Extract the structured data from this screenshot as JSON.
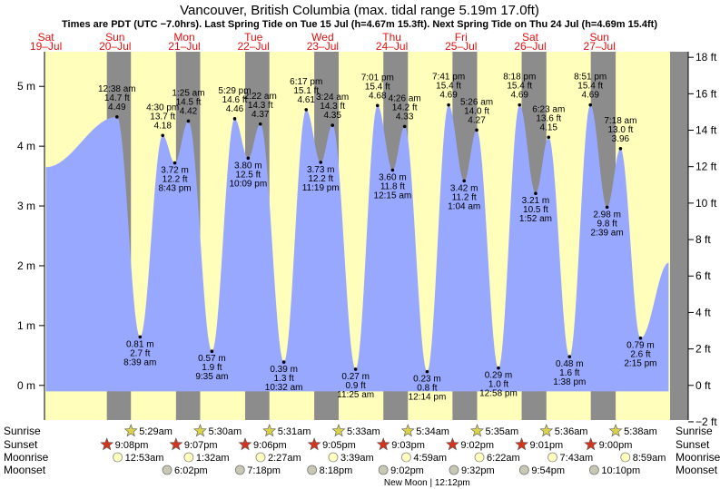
{
  "chart_data": {
    "type": "area",
    "title": "Vancouver, British Columbia (max. tidal range 5.19m 17.0ft)",
    "subtitle": "Times are PDT (UTC −7.0hrs). Last Spring Tide on Tue 15 Jul (h=4.67m 15.3ft). Next Spring Tide on Thu 24 Jul (h=4.69m 15.4ft)",
    "colors": {
      "water": "#99a8ff",
      "day": "#ffffbb",
      "night": "#8c8c8c",
      "axis_band": "#8c8c8c",
      "dayname": "#e01010"
    },
    "x_range_hours": [
      -0.5,
      216.5
    ],
    "ylim_m": [
      -0.58,
      5.58
    ],
    "left_axis": {
      "ticks": [
        0,
        1,
        2,
        3,
        4,
        5
      ],
      "labels": [
        "0 m",
        "1 m",
        "2 m",
        "3 m",
        "4 m",
        "5 m"
      ]
    },
    "right_axis": {
      "ticks_ft": [
        -2,
        0,
        2,
        4,
        6,
        8,
        10,
        12,
        14,
        16,
        18
      ],
      "labels": [
        "−2 ft",
        "0 ft",
        "2 ft",
        "4 ft",
        "6 ft",
        "8 ft",
        "10 ft",
        "12 ft",
        "14 ft",
        "16 ft",
        "18 ft"
      ]
    },
    "days": [
      {
        "dow": "Sat",
        "date": "19–Jul"
      },
      {
        "dow": "Sun",
        "date": "20–Jul"
      },
      {
        "dow": "Mon",
        "date": "21–Jul"
      },
      {
        "dow": "Tue",
        "date": "22–Jul"
      },
      {
        "dow": "Wed",
        "date": "23–Jul"
      },
      {
        "dow": "Thu",
        "date": "24–Jul"
      },
      {
        "dow": "Fri",
        "date": "25–Jul"
      },
      {
        "dow": "Sat",
        "date": "26–Jul"
      },
      {
        "dow": "Sun",
        "date": "27–Jul"
      }
    ],
    "start_height_m": 3.65,
    "tides": [
      {
        "h": 4.49,
        "hf": "14.7 ft",
        "hm": "4.49",
        "time": "12:38 am",
        "t": 24.63,
        "hi": true
      },
      {
        "h": 0.81,
        "hf": "2.7 ft",
        "hm": "0.81 m",
        "time": "8:39 am",
        "t": 32.65,
        "hi": false
      },
      {
        "h": 4.18,
        "hf": "13.7 ft",
        "hm": "4.18",
        "time": "4:30 pm",
        "t": 40.5,
        "hi": true
      },
      {
        "h": 3.72,
        "hf": "12.2 ft",
        "hm": "3.72 m",
        "time": "8:43 pm",
        "t": 44.72,
        "hi": false
      },
      {
        "h": 4.42,
        "hf": "14.5 ft",
        "hm": "4.42",
        "time": "1:25 am",
        "t": 49.42,
        "hi": true
      },
      {
        "h": 0.57,
        "hf": "1.9 ft",
        "hm": "0.57 m",
        "time": "9:35 am",
        "t": 57.58,
        "hi": false
      },
      {
        "h": 4.46,
        "hf": "14.6 ft",
        "hm": "4.46",
        "time": "5:29 pm",
        "t": 65.48,
        "hi": true
      },
      {
        "h": 3.8,
        "hf": "12.5 ft",
        "hm": "3.80 m",
        "time": "10:09 pm",
        "t": 70.15,
        "hi": false
      },
      {
        "h": 4.37,
        "hf": "14.3 ft",
        "hm": "4.37",
        "time": "2:22 am",
        "t": 74.37,
        "hi": true
      },
      {
        "h": 0.39,
        "hf": "1.3 ft",
        "hm": "0.39 m",
        "time": "10:32 am",
        "t": 82.53,
        "hi": false
      },
      {
        "h": 4.61,
        "hf": "15.1 ft",
        "hm": "4.61",
        "time": "6:17 pm",
        "t": 90.28,
        "hi": true
      },
      {
        "h": 3.73,
        "hf": "12.2 ft",
        "hm": "3.73 m",
        "time": "11:19 pm",
        "t": 95.32,
        "hi": false
      },
      {
        "h": 4.35,
        "hf": "14.3 ft",
        "hm": "4.35",
        "time": "3:24 am",
        "t": 99.4,
        "hi": true
      },
      {
        "h": 0.27,
        "hf": "0.9 ft",
        "hm": "0.27 m",
        "time": "11:25 am",
        "t": 107.42,
        "hi": false
      },
      {
        "h": 4.68,
        "hf": "15.4 ft",
        "hm": "4.68",
        "time": "7:01 pm",
        "t": 115.02,
        "hi": true
      },
      {
        "h": 3.6,
        "hf": "11.8 ft",
        "hm": "3.60 m",
        "time": "12:15 am",
        "t": 120.25,
        "hi": false
      },
      {
        "h": 4.33,
        "hf": "14.2 ft",
        "hm": "4.33",
        "time": "4:26 am",
        "t": 124.43,
        "hi": true
      },
      {
        "h": 0.23,
        "hf": "0.8 ft",
        "hm": "0.23 m",
        "time": "12:14 pm",
        "t": 132.23,
        "hi": false
      },
      {
        "h": 4.69,
        "hf": "15.4 ft",
        "hm": "4.69",
        "time": "7:41 pm",
        "t": 139.68,
        "hi": true
      },
      {
        "h": 3.42,
        "hf": "11.2 ft",
        "hm": "3.42 m",
        "time": "1:04 am",
        "t": 145.07,
        "hi": false
      },
      {
        "h": 4.27,
        "hf": "14.0 ft",
        "hm": "4.27",
        "time": "5:26 am",
        "t": 149.43,
        "hi": true
      },
      {
        "h": 0.29,
        "hf": "1.0 ft",
        "hm": "0.29 m",
        "time": "12:58 pm",
        "t": 156.97,
        "hi": false
      },
      {
        "h": 4.69,
        "hf": "15.4 ft",
        "hm": "4.69",
        "time": "8:18 pm",
        "t": 164.3,
        "hi": true
      },
      {
        "h": 3.21,
        "hf": "10.5 ft",
        "hm": "3.21 m",
        "time": "1:52 am",
        "t": 169.87,
        "hi": false
      },
      {
        "h": 4.15,
        "hf": "13.6 ft",
        "hm": "4.15",
        "time": "6:23 am",
        "t": 174.38,
        "hi": true
      },
      {
        "h": 0.48,
        "hf": "1.6 ft",
        "hm": "0.48 m",
        "time": "1:38 pm",
        "t": 181.63,
        "hi": false
      },
      {
        "h": 4.69,
        "hf": "15.4 ft",
        "hm": "4.69",
        "time": "8:51 pm",
        "t": 188.85,
        "hi": true
      },
      {
        "h": 2.98,
        "hf": "9.8 ft",
        "hm": "2.98 m",
        "time": "2:39 am",
        "t": 194.65,
        "hi": false
      },
      {
        "h": 3.96,
        "hf": "13.0 ft",
        "hm": "3.96",
        "time": "7:18 am",
        "t": 199.3,
        "hi": true
      },
      {
        "h": 0.79,
        "hf": "2.6 ft",
        "hm": "0.79 m",
        "time": "2:15 pm",
        "t": 206.25,
        "hi": false
      }
    ],
    "end_height_m": 2.05,
    "sun_moon": {
      "row_labels": {
        "sunrise": "Sunrise",
        "sunset": "Sunset",
        "moonrise": "Moonrise",
        "moonset": "Moonset"
      },
      "sunrise": [
        {
          "t": 29.48,
          "time": "5:29am"
        },
        {
          "t": 53.5,
          "time": "5:30am"
        },
        {
          "t": 77.52,
          "time": "5:31am"
        },
        {
          "t": 101.55,
          "time": "5:33am"
        },
        {
          "t": 125.57,
          "time": "5:34am"
        },
        {
          "t": 149.58,
          "time": "5:35am"
        },
        {
          "t": 173.6,
          "time": "5:36am"
        },
        {
          "t": 197.63,
          "time": "5:38am"
        }
      ],
      "sunset": [
        {
          "t": 21.13,
          "time": "9:08pm"
        },
        {
          "t": 45.12,
          "time": "9:07pm"
        },
        {
          "t": 69.1,
          "time": "9:06pm"
        },
        {
          "t": 93.08,
          "time": "9:05pm"
        },
        {
          "t": 117.05,
          "time": "9:03pm"
        },
        {
          "t": 141.03,
          "time": "9:02pm"
        },
        {
          "t": 165.02,
          "time": "9:01pm"
        },
        {
          "t": 189.0,
          "time": "9:00pm"
        }
      ],
      "moonrise": [
        {
          "t": 24.88,
          "time": "12:53am"
        },
        {
          "t": 49.53,
          "time": "1:32am"
        },
        {
          "t": 74.45,
          "time": "2:27am"
        },
        {
          "t": 99.65,
          "time": "3:39am"
        },
        {
          "t": 124.98,
          "time": "4:59am"
        },
        {
          "t": 150.37,
          "time": "6:22am"
        },
        {
          "t": 175.72,
          "time": "7:43am"
        },
        {
          "t": 200.98,
          "time": "8:59am"
        }
      ],
      "moonset": [
        {
          "t": 42.03,
          "time": "6:02pm"
        },
        {
          "t": 67.3,
          "time": "7:18pm"
        },
        {
          "t": 92.3,
          "time": "8:18pm"
        },
        {
          "t": 117.03,
          "time": "9:02pm"
        },
        {
          "t": 141.53,
          "time": "9:32pm"
        },
        {
          "t": 165.9,
          "time": "9:54pm"
        },
        {
          "t": 190.17,
          "time": "10:10pm"
        }
      ],
      "new_moon": {
        "t": 132.2,
        "label": "New Moon | 12:12pm"
      }
    }
  }
}
